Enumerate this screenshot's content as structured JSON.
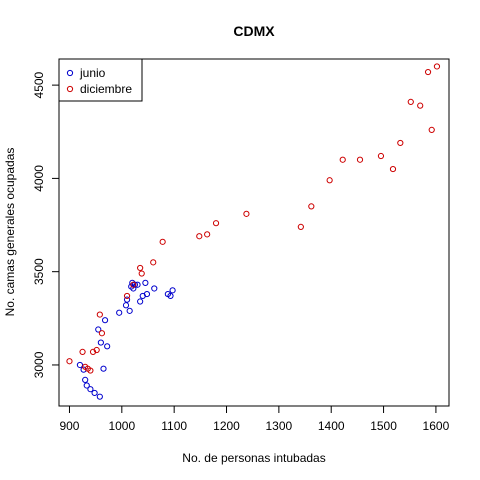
{
  "chart_data": {
    "type": "scatter",
    "title": "CDMX",
    "xlabel": "No. de personas intubadas",
    "ylabel": "No. camas generales ocupadas",
    "xlim": [
      880,
      1625
    ],
    "ylim": [
      2780,
      4640
    ],
    "x_ticks": [
      900,
      1000,
      1100,
      1200,
      1300,
      1400,
      1500,
      1600
    ],
    "y_ticks": [
      3000,
      3500,
      4000,
      4500
    ],
    "grid": false,
    "legend_position": "top-left",
    "series": [
      {
        "name": "junio",
        "color": "#0000CD",
        "points": [
          [
            920,
            3000
          ],
          [
            927,
            2975
          ],
          [
            930,
            2920
          ],
          [
            933,
            2890
          ],
          [
            940,
            2870
          ],
          [
            948,
            2850
          ],
          [
            958,
            2830
          ],
          [
            965,
            2980
          ],
          [
            955,
            3190
          ],
          [
            960,
            3120
          ],
          [
            968,
            3240
          ],
          [
            972,
            3100
          ],
          [
            995,
            3280
          ],
          [
            1008,
            3320
          ],
          [
            1010,
            3350
          ],
          [
            1015,
            3290
          ],
          [
            1018,
            3420
          ],
          [
            1020,
            3440
          ],
          [
            1022,
            3410
          ],
          [
            1025,
            3430
          ],
          [
            1030,
            3430
          ],
          [
            1035,
            3340
          ],
          [
            1040,
            3370
          ],
          [
            1045,
            3440
          ],
          [
            1048,
            3380
          ],
          [
            1062,
            3410
          ],
          [
            1088,
            3380
          ],
          [
            1093,
            3370
          ],
          [
            1097,
            3400
          ]
        ]
      },
      {
        "name": "diciembre",
        "color": "#CD0000",
        "points": [
          [
            900,
            3020
          ],
          [
            925,
            3070
          ],
          [
            930,
            2990
          ],
          [
            935,
            2980
          ],
          [
            940,
            2970
          ],
          [
            945,
            3070
          ],
          [
            952,
            3080
          ],
          [
            958,
            3270
          ],
          [
            962,
            3170
          ],
          [
            1010,
            3370
          ],
          [
            1022,
            3430
          ],
          [
            1035,
            3520
          ],
          [
            1038,
            3490
          ],
          [
            1060,
            3550
          ],
          [
            1078,
            3660
          ],
          [
            1148,
            3690
          ],
          [
            1163,
            3700
          ],
          [
            1180,
            3760
          ],
          [
            1238,
            3810
          ],
          [
            1342,
            3740
          ],
          [
            1362,
            3850
          ],
          [
            1397,
            3990
          ],
          [
            1422,
            4100
          ],
          [
            1455,
            4100
          ],
          [
            1495,
            4120
          ],
          [
            1518,
            4050
          ],
          [
            1532,
            4190
          ],
          [
            1552,
            4410
          ],
          [
            1570,
            4390
          ],
          [
            1585,
            4570
          ],
          [
            1592,
            4260
          ],
          [
            1602,
            4600
          ]
        ]
      }
    ]
  }
}
